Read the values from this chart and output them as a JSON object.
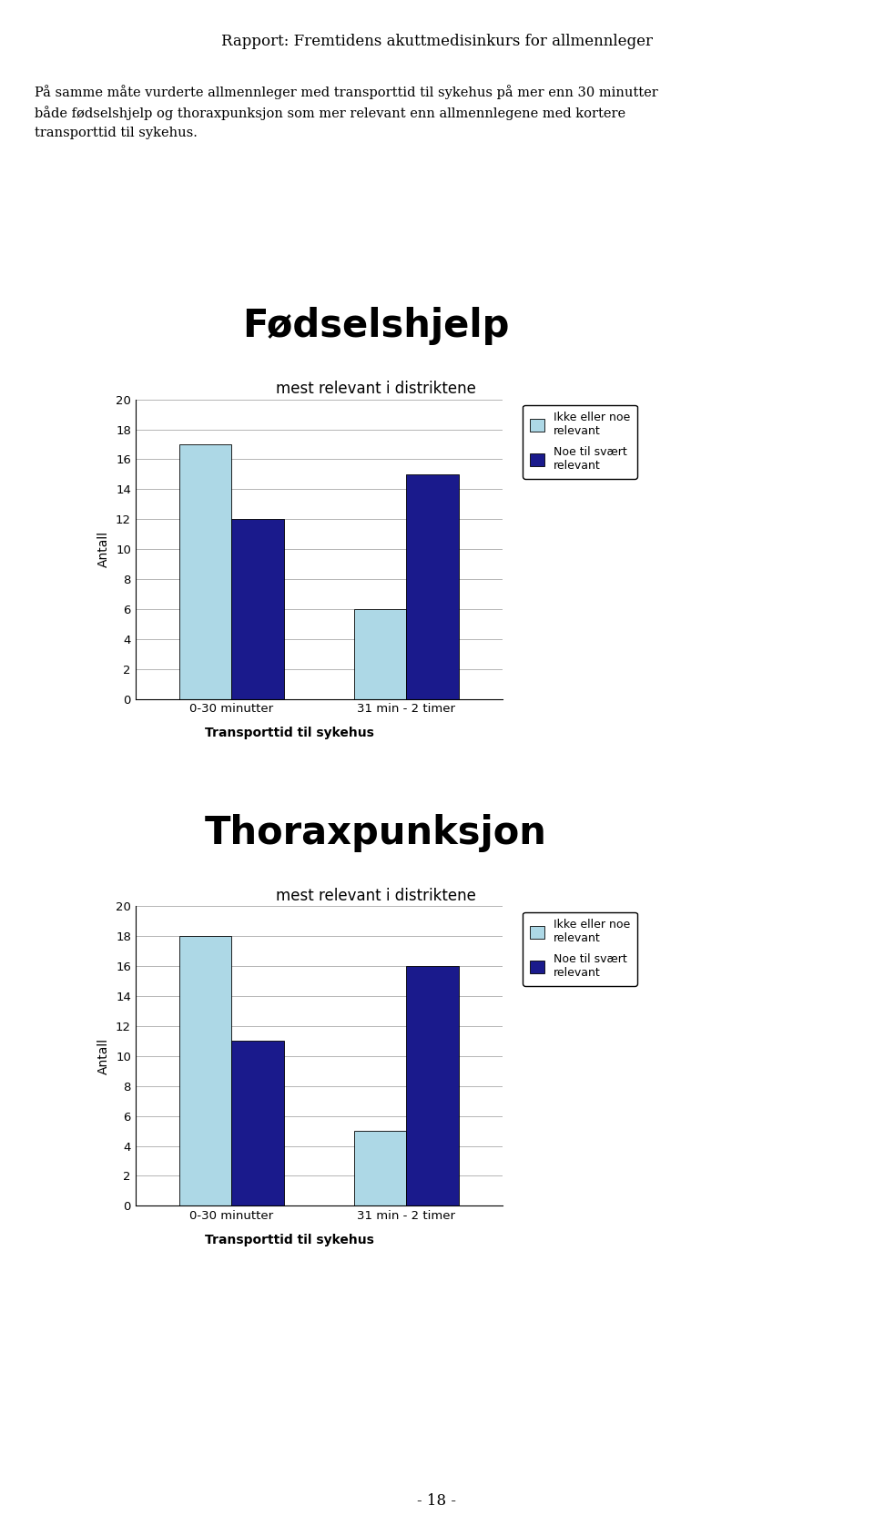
{
  "page_title": "Rapport: Fremtidens akuttmedisinkurs for allmennleger",
  "body_text": "På samme måte vurderte allmennleger med transporttid til sykehus på mer enn 30 minutter\nbåde fødselshjelp og thoraxpunksjon som mer relevant enn allmennlegene med kortere\ntransporttid til sykehus.",
  "page_number": "- 18 -",
  "charts": [
    {
      "title": "Fødselshjelp",
      "subtitle": "mest relevant i distriktene",
      "categories": [
        "0-30 minutter",
        "31 min - 2 timer"
      ],
      "series": [
        {
          "name": "Ikke eller noe\nrelevant",
          "values": [
            17,
            6
          ],
          "color": "#add8e6"
        },
        {
          "name": "Noe til svært\nrelevant",
          "values": [
            12,
            15
          ],
          "color": "#1a1a8c"
        }
      ],
      "ylabel": "Antall",
      "xlabel": "Transporttid til sykehus",
      "ylim": [
        0,
        20
      ],
      "yticks": [
        0,
        2,
        4,
        6,
        8,
        10,
        12,
        14,
        16,
        18,
        20
      ]
    },
    {
      "title": "Thoraxpunksjon",
      "subtitle": "mest relevant i distriktene",
      "categories": [
        "0-30 minutter",
        "31 min - 2 timer"
      ],
      "series": [
        {
          "name": "Ikke eller noe\nrelevant",
          "values": [
            18,
            5
          ],
          "color": "#add8e6"
        },
        {
          "name": "Noe til svært\nrelevant",
          "values": [
            11,
            16
          ],
          "color": "#1a1a8c"
        }
      ],
      "ylabel": "Antall",
      "xlabel": "Transporttid til sykehus",
      "ylim": [
        0,
        20
      ],
      "yticks": [
        0,
        2,
        4,
        6,
        8,
        10,
        12,
        14,
        16,
        18,
        20
      ]
    }
  ],
  "bar_width": 0.3,
  "background_color": "#ffffff"
}
